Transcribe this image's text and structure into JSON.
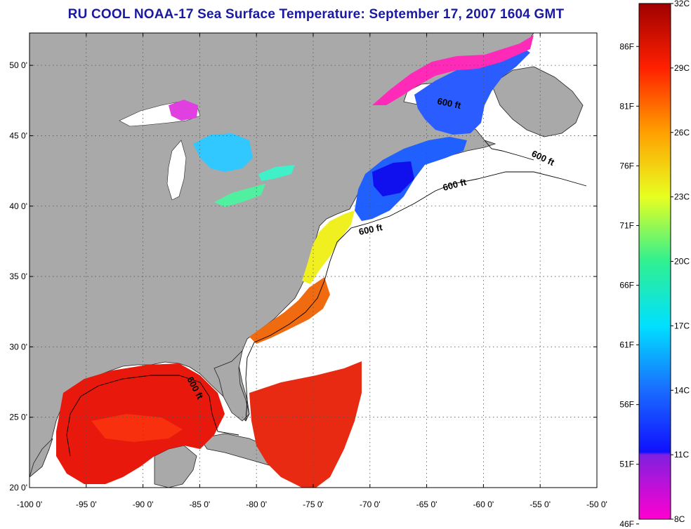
{
  "title": "RU COOL  NOAA-17  Sea Surface Temperature:  September 17, 2007 1604 GMT",
  "colors": {
    "land": "#a9a9a9",
    "ocean_nodata": "#ffffff",
    "title": "#1a1aa0",
    "grid": "#555555"
  },
  "axes": {
    "lon_ticks": [
      "-100 0'",
      "-95 0'",
      "-90 0'",
      "-85 0'",
      "-80 0'",
      "-75 0'",
      "-70 0'",
      "-65 0'",
      "-60 0'",
      "-55 0'",
      "-50 0'"
    ],
    "lat_ticks": [
      "50 0'",
      "45 0'",
      "40 0'",
      "35 0'",
      "30 0'",
      "25 0'",
      "20 0'"
    ],
    "lon_range": [
      -100,
      -50
    ],
    "lat_range": [
      20,
      52.3
    ]
  },
  "contours": [
    {
      "label": "600 ft"
    },
    {
      "label": "600 ft"
    },
    {
      "label": "600 ft"
    },
    {
      "label": "600 ft"
    },
    {
      "label": "600 ft"
    }
  ],
  "colorbar": {
    "celsius_ticks": [
      "32C",
      "29C",
      "26C",
      "23C",
      "20C",
      "17C",
      "14C",
      "11C",
      "8C"
    ],
    "fahrenheit_ticks": [
      "86F",
      "81F",
      "76F",
      "71F",
      "66F",
      "61F",
      "56F",
      "51F",
      "46F"
    ],
    "range_c": [
      8,
      32
    ]
  }
}
